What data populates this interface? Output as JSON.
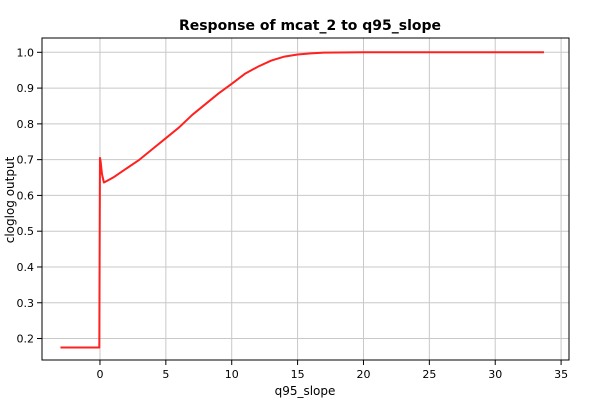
{
  "chart_data": {
    "type": "line",
    "title": "Response of mcat_2 to q95_slope",
    "xlabel": "q95_slope",
    "ylabel": "cloglog output",
    "xlim": [
      -4.4,
      35.6
    ],
    "ylim": [
      0.14,
      1.04
    ],
    "x_ticks": [
      0,
      5,
      10,
      15,
      20,
      25,
      30,
      35
    ],
    "y_ticks": [
      0.2,
      0.3,
      0.4,
      0.5,
      0.6,
      0.7,
      0.8,
      0.9,
      1.0
    ],
    "x_tick_labels": [
      "0",
      "5",
      "10",
      "15",
      "20",
      "25",
      "30",
      "35"
    ],
    "y_tick_labels": [
      "0.2",
      "0.3",
      "0.4",
      "0.5",
      "0.6",
      "0.7",
      "0.8",
      "0.9",
      "1.0"
    ],
    "grid": true,
    "legend": "none",
    "series": [
      {
        "color": "#ff2020",
        "x": [
          -3.0,
          -0.05,
          0.0,
          0.05,
          0.15,
          0.3,
          0.5,
          1.0,
          2.0,
          3.0,
          4.0,
          5.0,
          6.0,
          7.0,
          8.0,
          9.0,
          10.0,
          11.0,
          12.0,
          13.0,
          14.0,
          15.0,
          16.0,
          17.0,
          20.0,
          25.0,
          30.0,
          33.7
        ],
        "y": [
          0.175,
          0.175,
          0.705,
          0.695,
          0.66,
          0.636,
          0.64,
          0.65,
          0.675,
          0.7,
          0.73,
          0.76,
          0.79,
          0.825,
          0.855,
          0.885,
          0.912,
          0.94,
          0.96,
          0.977,
          0.988,
          0.994,
          0.997,
          0.999,
          1.0,
          1.0,
          1.0,
          1.0
        ]
      }
    ]
  }
}
